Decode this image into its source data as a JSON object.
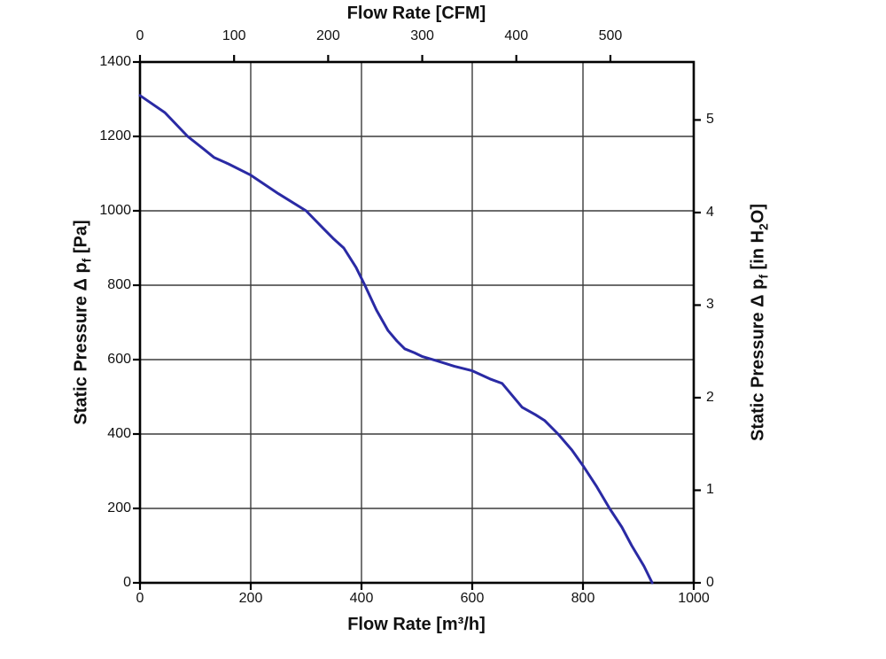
{
  "chart_data": {
    "type": "line",
    "title": "",
    "grid": true,
    "legend": null,
    "plot_bg": "#ffffff",
    "axis_color": "#000000",
    "grid_color": "#3b3b3b",
    "top_axis": {
      "label": "Flow Rate [CFM]",
      "unit": "CFM",
      "ticks": [
        0,
        100,
        200,
        300,
        400,
        500
      ],
      "to_bottom_units": 1.699
    },
    "bottom_axis": {
      "label": "Flow Rate [m³/h]",
      "unit": "m³/h",
      "ticks": [
        0,
        200,
        400,
        600,
        800,
        1000
      ],
      "range": [
        0,
        1000
      ]
    },
    "left_axis": {
      "label_prefix": "Static Pressure Δ p",
      "label_sub": "f",
      "label_suffix": " [Pa]",
      "unit": "Pa",
      "ticks": [
        1400,
        1200,
        1000,
        800,
        600,
        400,
        200,
        0
      ],
      "range": [
        0,
        1400
      ]
    },
    "right_axis": {
      "label_prefix": "Static Pressure Δ p",
      "label_sub": "f",
      "label_mid": " [in H",
      "label_sub2": "2",
      "label_suffix": "O]",
      "unit": "in H2O",
      "ticks": [
        5,
        4,
        3,
        2,
        1,
        0
      ],
      "to_left_units": 248.84
    },
    "series": [
      {
        "name": "static-pressure-vs-flow-curve",
        "color": "#2a2aa4",
        "x_unit": "m³/h",
        "y_unit": "Pa",
        "points": [
          [
            0,
            1310
          ],
          [
            45,
            1264
          ],
          [
            86,
            1200
          ],
          [
            115,
            1166
          ],
          [
            134,
            1143
          ],
          [
            160,
            1126
          ],
          [
            200,
            1096
          ],
          [
            250,
            1046
          ],
          [
            300,
            1000
          ],
          [
            330,
            954
          ],
          [
            350,
            924
          ],
          [
            368,
            900
          ],
          [
            390,
            848
          ],
          [
            406,
            800
          ],
          [
            427,
            733
          ],
          [
            448,
            678
          ],
          [
            464,
            650
          ],
          [
            478,
            629
          ],
          [
            496,
            618
          ],
          [
            510,
            608
          ],
          [
            536,
            597
          ],
          [
            568,
            582
          ],
          [
            600,
            570
          ],
          [
            632,
            548
          ],
          [
            654,
            536
          ],
          [
            690,
            472
          ],
          [
            714,
            452
          ],
          [
            731,
            436
          ],
          [
            755,
            400
          ],
          [
            780,
            357
          ],
          [
            800,
            315
          ],
          [
            825,
            258
          ],
          [
            848,
            200
          ],
          [
            870,
            150
          ],
          [
            888,
            100
          ],
          [
            910,
            45
          ],
          [
            925,
            0
          ]
        ]
      }
    ]
  }
}
